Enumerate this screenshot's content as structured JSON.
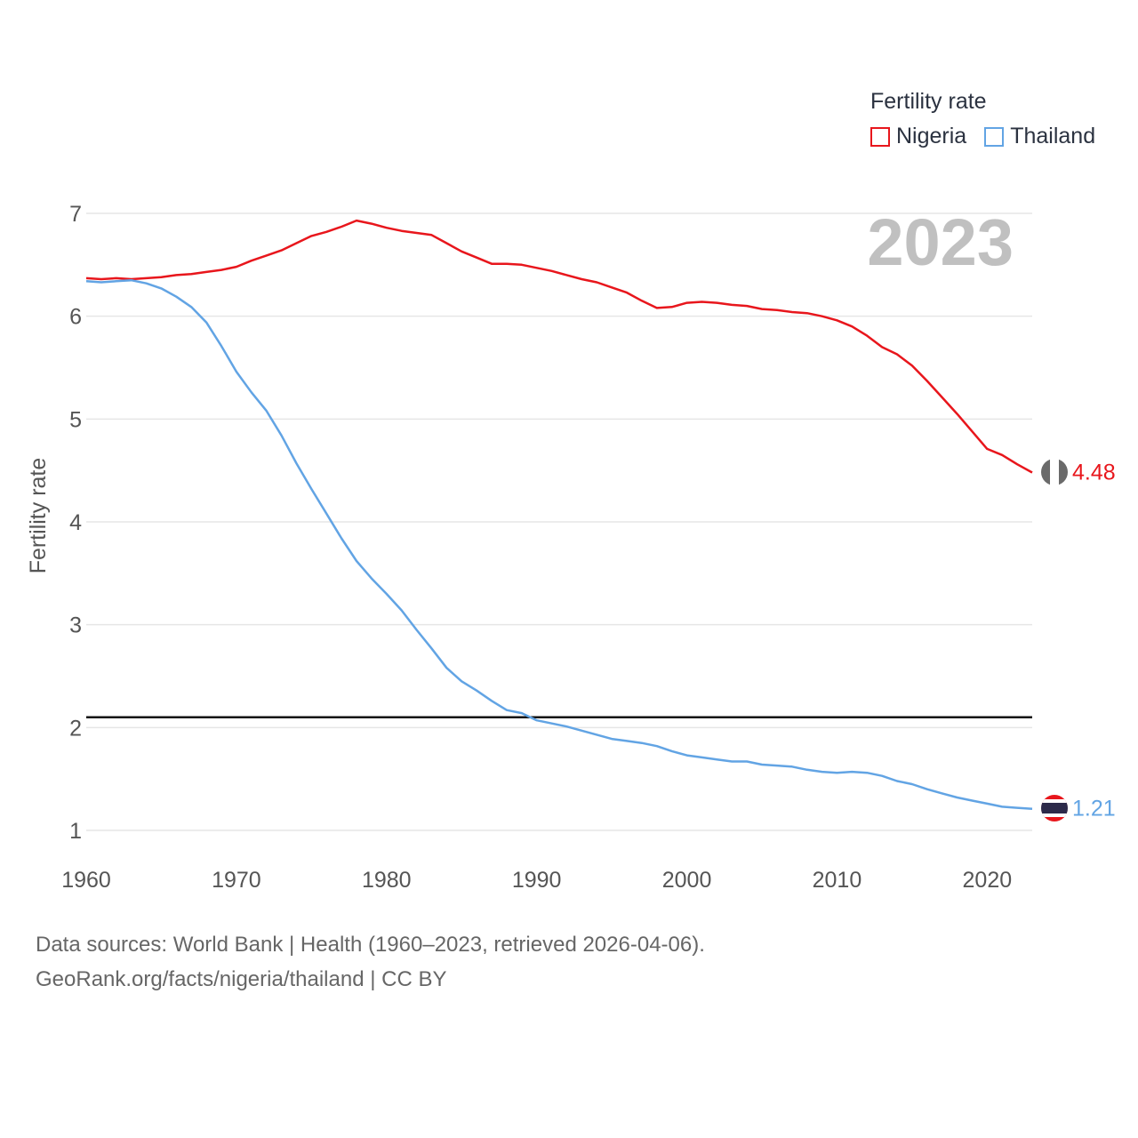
{
  "legend": {
    "title": "Fertility rate",
    "items": [
      {
        "name": "Nigeria",
        "color": "#e8161c"
      },
      {
        "name": "Thailand",
        "color": "#62a4e4"
      }
    ]
  },
  "footer": {
    "line1": "Data sources: World Bank | Health (1960–2023, retrieved 2026-04-06).",
    "line2": "GeoRank.org/facts/nigeria/thailand | CC BY"
  },
  "chart_data": {
    "type": "line",
    "title": "",
    "year_label": "2023",
    "xlabel": "",
    "ylabel": "Fertility rate",
    "xlim": [
      1960,
      2023
    ],
    "ylim": [
      1,
      7
    ],
    "x_ticks": [
      1960,
      1970,
      1980,
      1990,
      2000,
      2010,
      2020
    ],
    "y_ticks": [
      1,
      2,
      3,
      4,
      5,
      6,
      7
    ],
    "grid": true,
    "reference_line": 2.1,
    "series": [
      {
        "name": "Nigeria",
        "color": "#e8161c",
        "end_label": "4.48",
        "x": [
          1960,
          1961,
          1962,
          1963,
          1964,
          1965,
          1966,
          1967,
          1968,
          1969,
          1970,
          1971,
          1972,
          1973,
          1974,
          1975,
          1976,
          1977,
          1978,
          1979,
          1980,
          1981,
          1982,
          1983,
          1984,
          1985,
          1986,
          1987,
          1988,
          1989,
          1990,
          1991,
          1992,
          1993,
          1994,
          1995,
          1996,
          1997,
          1998,
          1999,
          2000,
          2001,
          2002,
          2003,
          2004,
          2005,
          2006,
          2007,
          2008,
          2009,
          2010,
          2011,
          2012,
          2013,
          2014,
          2015,
          2016,
          2017,
          2018,
          2019,
          2020,
          2021,
          2022,
          2023
        ],
        "values": [
          6.37,
          6.36,
          6.37,
          6.36,
          6.37,
          6.38,
          6.4,
          6.41,
          6.43,
          6.45,
          6.48,
          6.54,
          6.59,
          6.64,
          6.71,
          6.78,
          6.82,
          6.87,
          6.93,
          6.9,
          6.86,
          6.83,
          6.81,
          6.79,
          6.71,
          6.63,
          6.57,
          6.51,
          6.51,
          6.5,
          6.47,
          6.44,
          6.4,
          6.36,
          6.33,
          6.28,
          6.23,
          6.15,
          6.08,
          6.09,
          6.13,
          6.14,
          6.13,
          6.11,
          6.1,
          6.07,
          6.06,
          6.04,
          6.03,
          6.0,
          5.96,
          5.9,
          5.81,
          5.7,
          5.63,
          5.52,
          5.37,
          5.21,
          5.05,
          4.88,
          4.71,
          4.65,
          4.56,
          4.48
        ]
      },
      {
        "name": "Thailand",
        "color": "#62a4e4",
        "end_label": "1.21",
        "x": [
          1960,
          1961,
          1962,
          1963,
          1964,
          1965,
          1966,
          1967,
          1968,
          1969,
          1970,
          1971,
          1972,
          1973,
          1974,
          1975,
          1976,
          1977,
          1978,
          1979,
          1980,
          1981,
          1982,
          1983,
          1984,
          1985,
          1986,
          1987,
          1988,
          1989,
          1990,
          1991,
          1992,
          1993,
          1994,
          1995,
          1996,
          1997,
          1998,
          1999,
          2000,
          2001,
          2002,
          2003,
          2004,
          2005,
          2006,
          2007,
          2008,
          2009,
          2010,
          2011,
          2012,
          2013,
          2014,
          2015,
          2016,
          2017,
          2018,
          2019,
          2020,
          2021,
          2022,
          2023
        ],
        "values": [
          6.34,
          6.33,
          6.34,
          6.35,
          6.32,
          6.27,
          6.19,
          6.09,
          5.94,
          5.71,
          5.46,
          5.26,
          5.08,
          4.84,
          4.57,
          4.32,
          4.08,
          3.84,
          3.62,
          3.45,
          3.3,
          3.14,
          2.95,
          2.77,
          2.58,
          2.45,
          2.36,
          2.26,
          2.17,
          2.14,
          2.07,
          2.04,
          2.01,
          1.97,
          1.93,
          1.89,
          1.87,
          1.85,
          1.82,
          1.77,
          1.73,
          1.71,
          1.69,
          1.67,
          1.67,
          1.64,
          1.63,
          1.62,
          1.59,
          1.57,
          1.56,
          1.57,
          1.56,
          1.53,
          1.48,
          1.45,
          1.4,
          1.36,
          1.32,
          1.29,
          1.26,
          1.23,
          1.22,
          1.21
        ]
      }
    ]
  }
}
